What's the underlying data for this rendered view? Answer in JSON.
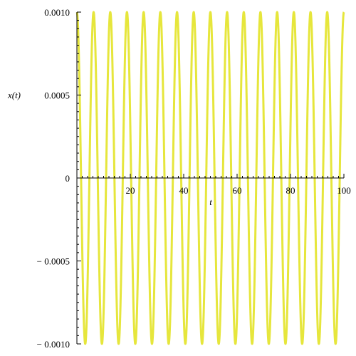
{
  "chart_data": {
    "type": "line",
    "title": "",
    "xlabel": "t",
    "ylabel": "x(t)",
    "xlim": [
      0,
      100
    ],
    "ylim": [
      -0.001,
      0.001
    ],
    "grid": false,
    "x_ticks": [
      {
        "value": 20,
        "label": "20"
      },
      {
        "value": 40,
        "label": "40"
      },
      {
        "value": 60,
        "label": "60"
      },
      {
        "value": 80,
        "label": "80"
      },
      {
        "value": 100,
        "label": "100"
      }
    ],
    "y_ticks": [
      {
        "value": 0.001,
        "label": "0.0010"
      },
      {
        "value": 0.0005,
        "label": "0.0005"
      },
      {
        "value": 0,
        "label": "0"
      },
      {
        "value": -0.0005,
        "label": "− 0.0005"
      },
      {
        "value": -0.001,
        "label": "− 0.0010"
      }
    ],
    "series": [
      {
        "function": "sinusoid",
        "amplitude": 0.001,
        "period": 6.25,
        "phase_cycles": 0.25,
        "t_start": 0,
        "t_end": 100,
        "color": "#e6e63c"
      }
    ]
  }
}
